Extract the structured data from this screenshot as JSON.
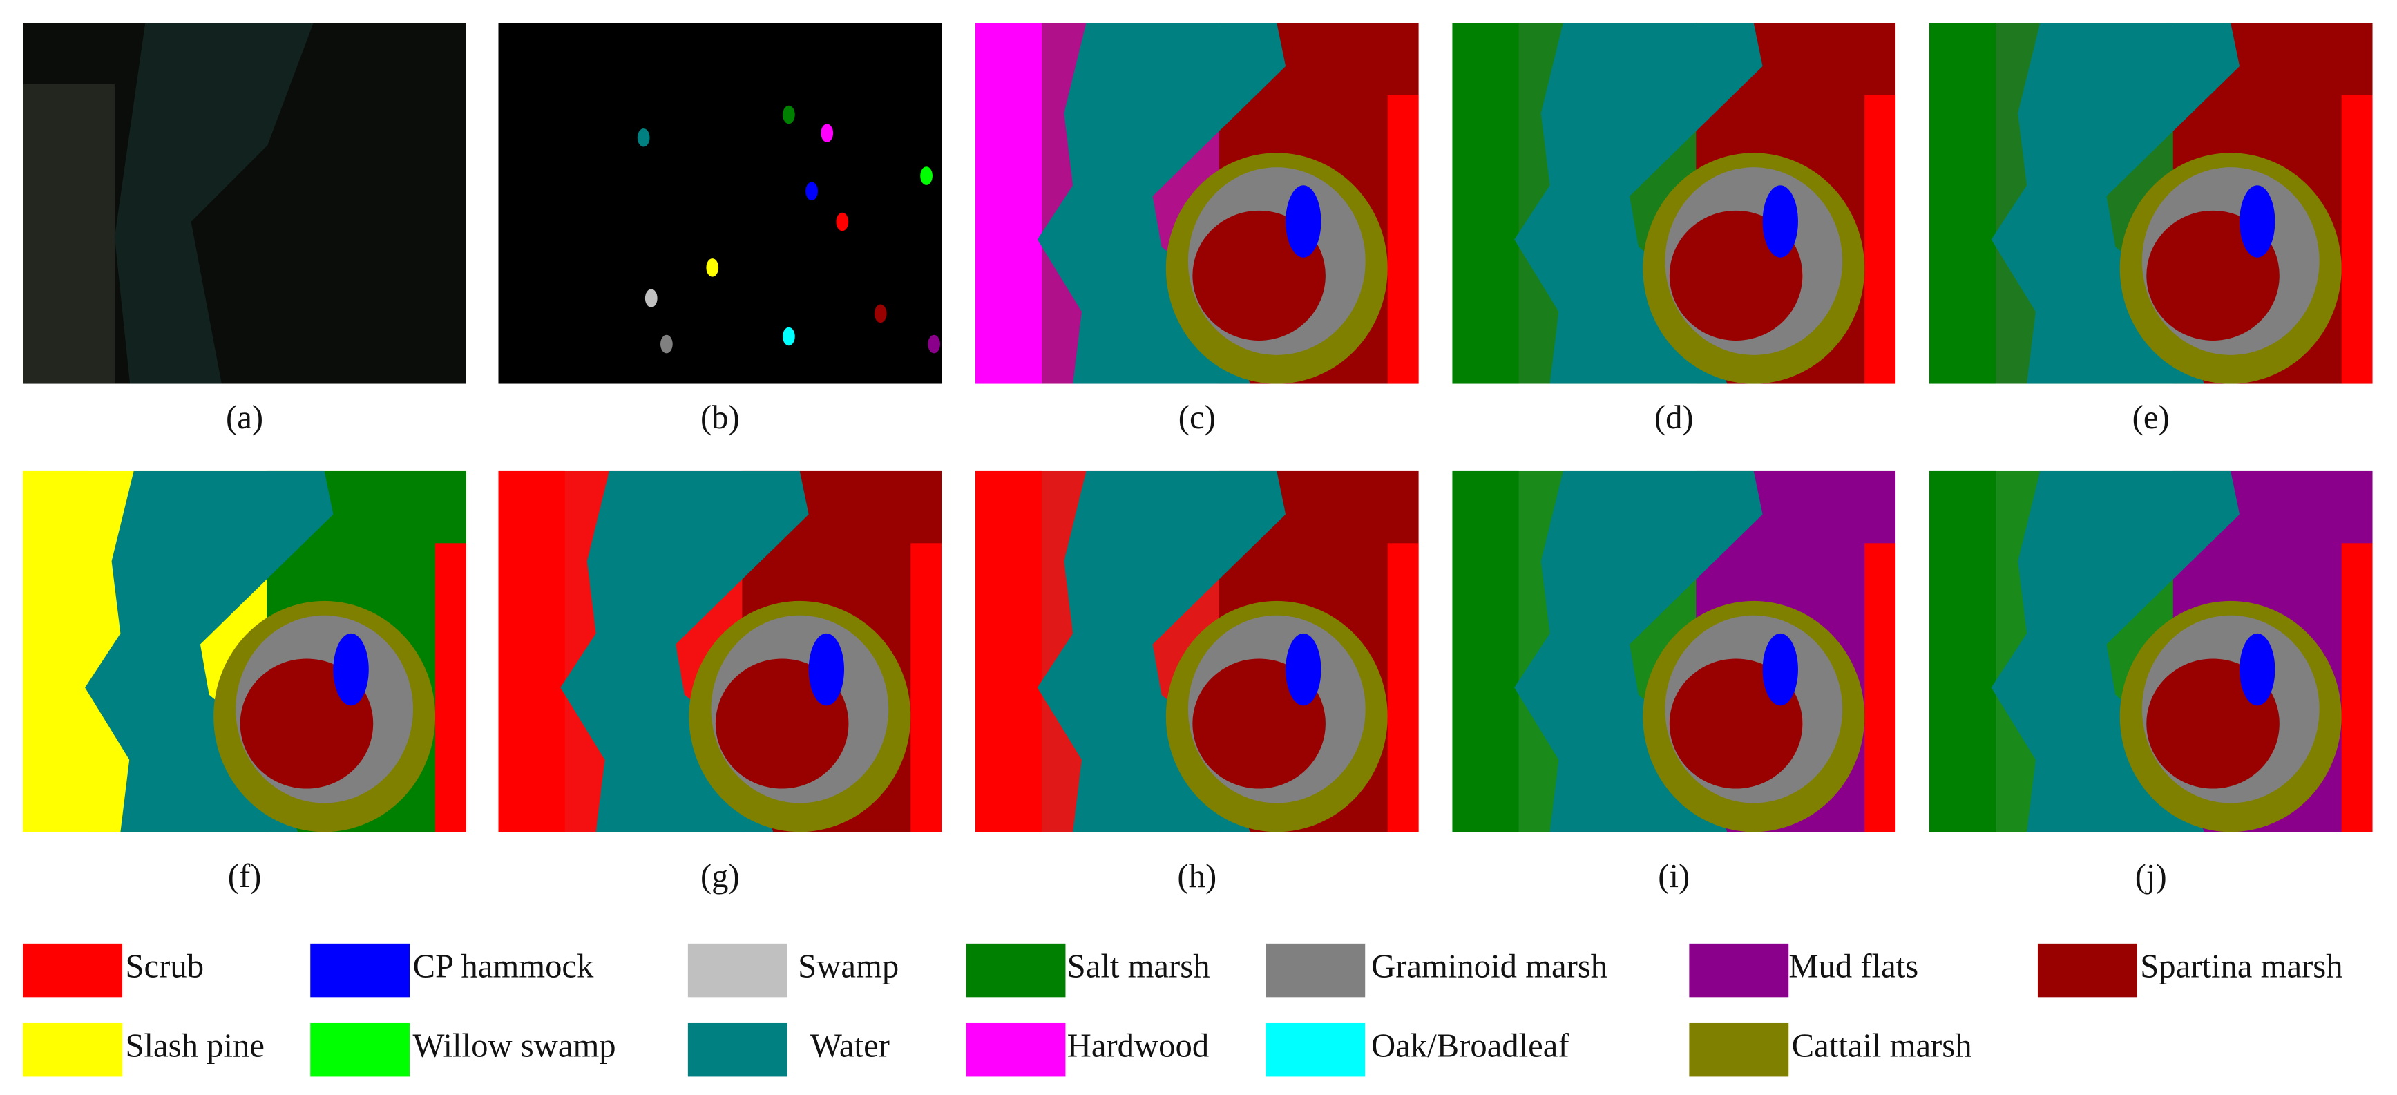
{
  "panels": [
    {
      "label": "(a)"
    },
    {
      "label": "(b)"
    },
    {
      "label": "(c)"
    },
    {
      "label": "(d)"
    },
    {
      "label": "(e)"
    },
    {
      "label": "(f)"
    },
    {
      "label": "(g)"
    },
    {
      "label": "(h)"
    },
    {
      "label": "(i)"
    },
    {
      "label": "(j)"
    }
  ],
  "legend": [
    {
      "label": "Scrub",
      "color": "#ff0000"
    },
    {
      "label": "CP hammock",
      "color": "#0000ff"
    },
    {
      "label": "Swamp",
      "color": "#c0c0c0"
    },
    {
      "label": "Salt marsh",
      "color": "#008000"
    },
    {
      "label": "Graminoid marsh",
      "color": "#808080"
    },
    {
      "label": "Mud flats",
      "color": "#8b008b"
    },
    {
      "label": "Spartina marsh",
      "color": "#990000"
    },
    {
      "label": "Slash pine",
      "color": "#ffff00"
    },
    {
      "label": "Willow swamp",
      "color": "#00ff00"
    },
    {
      "label": "Water",
      "color": "#008080"
    },
    {
      "label": "Hardwood",
      "color": "#ff00ff"
    },
    {
      "label": "Oak/Broadleaf",
      "color": "#00ffff"
    },
    {
      "label": "Cattail marsh",
      "color": "#808000"
    }
  ]
}
